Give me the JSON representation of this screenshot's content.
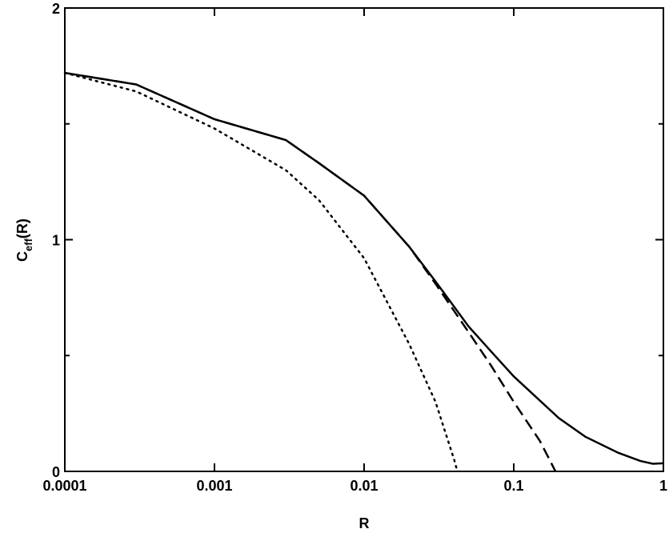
{
  "chart_data": {
    "type": "line",
    "x_label": "R",
    "y_label": [
      "C",
      "eff",
      "(R)"
    ],
    "xscale": "log",
    "xlim": [
      0.0001,
      1
    ],
    "xticks": [
      0.0001,
      0.001,
      0.01,
      0.1,
      1
    ],
    "ylim": [
      0,
      2
    ],
    "yticks": [
      0,
      1,
      2
    ],
    "yminorticks": [
      0.5,
      1.5
    ],
    "series": [
      {
        "color": "#000000",
        "linestyle": "solid",
        "x": [
          0.0001,
          0.0003,
          0.001,
          0.003,
          0.005,
          0.01,
          0.02,
          0.03,
          0.05,
          0.07,
          0.1,
          0.2,
          0.3,
          0.5,
          0.7,
          0.85,
          1
        ],
        "values": [
          1.72,
          1.67,
          1.52,
          1.43,
          1.33,
          1.19,
          0.97,
          0.82,
          0.625,
          0.52,
          0.41,
          0.23,
          0.15,
          0.08,
          0.045,
          0.033,
          0.035
        ]
      },
      {
        "color": "#000000",
        "linestyle": "dashed",
        "x": [
          0.0001,
          0.0003,
          0.001,
          0.003,
          0.005,
          0.01,
          0.02,
          0.03,
          0.05,
          0.07,
          0.1,
          0.15,
          0.19
        ],
        "values": [
          1.72,
          1.67,
          1.52,
          1.43,
          1.33,
          1.19,
          0.97,
          0.81,
          0.6,
          0.46,
          0.3,
          0.13,
          0
        ]
      },
      {
        "color": "#000000",
        "linestyle": "dotted",
        "x": [
          0.0001,
          0.0003,
          0.001,
          0.003,
          0.005,
          0.01,
          0.02,
          0.03,
          0.04,
          0.042
        ],
        "values": [
          1.72,
          1.64,
          1.48,
          1.3,
          1.17,
          0.92,
          0.55,
          0.3,
          0.05,
          0
        ]
      }
    ]
  }
}
